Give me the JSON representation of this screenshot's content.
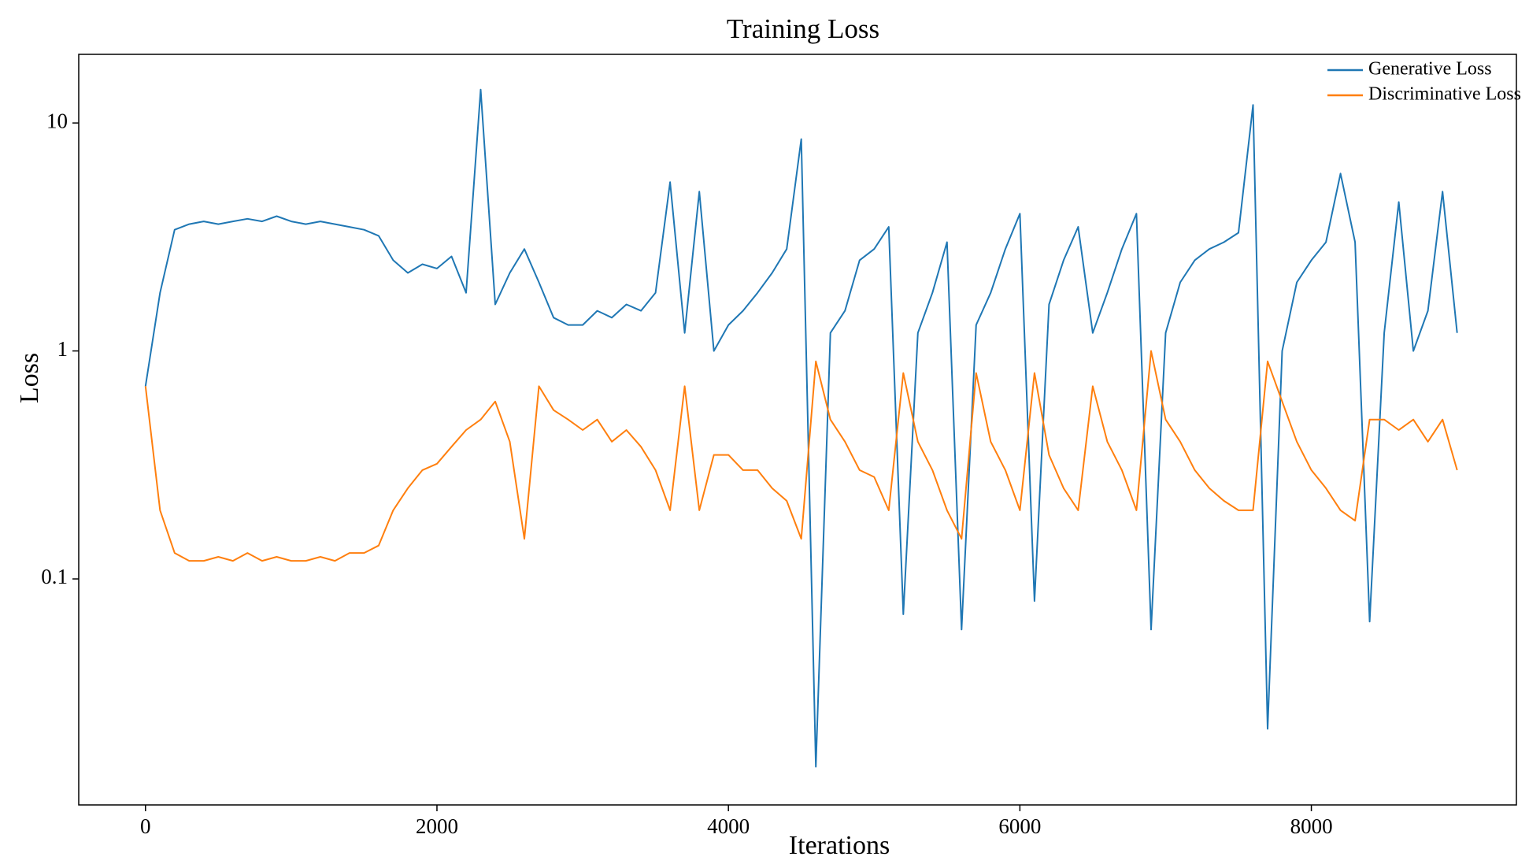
{
  "chart_data": {
    "type": "line",
    "title": "Training Loss",
    "x_label": "Iterations",
    "y_label": "Loss",
    "y_scale": "log",
    "grid": false,
    "legend": "upper right",
    "xlim": [
      -458,
      9407
    ],
    "xticks": [
      0,
      2000,
      4000,
      6000,
      8000
    ],
    "ylim": [
      0.0102,
      20
    ],
    "yticks": [
      0.1,
      1,
      10
    ],
    "x": [
      0,
      100,
      200,
      300,
      400,
      500,
      600,
      700,
      800,
      900,
      1000,
      1100,
      1200,
      1300,
      1400,
      1500,
      1600,
      1700,
      1800,
      1900,
      2000,
      2100,
      2200,
      2300,
      2400,
      2500,
      2600,
      2700,
      2800,
      2900,
      3000,
      3100,
      3200,
      3300,
      3400,
      3500,
      3600,
      3700,
      3800,
      3900,
      4000,
      4100,
      4200,
      4300,
      4400,
      4500,
      4600,
      4700,
      4800,
      4900,
      5000,
      5100,
      5200,
      5300,
      5400,
      5500,
      5600,
      5700,
      5800,
      5900,
      6000,
      6100,
      6200,
      6300,
      6400,
      6500,
      6600,
      6700,
      6800,
      6900,
      7000,
      7100,
      7200,
      7300,
      7400,
      7500,
      7600,
      7700,
      7800,
      7900,
      8000,
      8100,
      8200,
      8300,
      8400,
      8500,
      8600,
      8700,
      8800,
      8900,
      9000
    ],
    "series": [
      {
        "name": "Generative Loss",
        "color": "#1f77b4",
        "values": [
          0.7,
          1.8,
          3.4,
          3.6,
          3.7,
          3.6,
          3.7,
          3.8,
          3.7,
          3.9,
          3.7,
          3.6,
          3.7,
          3.6,
          3.5,
          3.4,
          3.2,
          2.5,
          2.2,
          2.4,
          2.3,
          2.6,
          1.8,
          14,
          1.6,
          2.2,
          2.8,
          2.0,
          1.4,
          1.3,
          1.3,
          1.5,
          1.4,
          1.6,
          1.5,
          1.8,
          5.5,
          1.2,
          5,
          1.0,
          1.3,
          1.5,
          1.8,
          2.2,
          2.8,
          8.5,
          0.015,
          1.2,
          1.5,
          2.5,
          2.8,
          3.5,
          0.07,
          1.2,
          1.8,
          3,
          0.06,
          1.3,
          1.8,
          2.8,
          4,
          0.08,
          1.6,
          2.5,
          3.5,
          1.2,
          1.8,
          2.8,
          4,
          0.06,
          1.2,
          2.0,
          2.5,
          2.8,
          3.0,
          3.3,
          12,
          0.022,
          1.0,
          2.0,
          2.5,
          3.0,
          6,
          3,
          0.065,
          1.2,
          4.5,
          1.0,
          1.5,
          5,
          1.2
        ]
      },
      {
        "name": "Discriminative Loss",
        "color": "#ff7f0e",
        "values": [
          0.7,
          0.2,
          0.13,
          0.12,
          0.12,
          0.125,
          0.12,
          0.13,
          0.12,
          0.125,
          0.12,
          0.12,
          0.125,
          0.12,
          0.13,
          0.13,
          0.14,
          0.2,
          0.25,
          0.3,
          0.32,
          0.38,
          0.45,
          0.5,
          0.6,
          0.4,
          0.15,
          0.7,
          0.55,
          0.5,
          0.45,
          0.5,
          0.4,
          0.45,
          0.38,
          0.3,
          0.2,
          0.7,
          0.2,
          0.35,
          0.35,
          0.3,
          0.3,
          0.25,
          0.22,
          0.15,
          0.9,
          0.5,
          0.4,
          0.3,
          0.28,
          0.2,
          0.8,
          0.4,
          0.3,
          0.2,
          0.15,
          0.8,
          0.4,
          0.3,
          0.2,
          0.8,
          0.35,
          0.25,
          0.2,
          0.7,
          0.4,
          0.3,
          0.2,
          1.0,
          0.5,
          0.4,
          0.3,
          0.25,
          0.22,
          0.2,
          0.2,
          0.9,
          0.6,
          0.4,
          0.3,
          0.25,
          0.2,
          0.18,
          0.5,
          0.5,
          0.45,
          0.5,
          0.4,
          0.5,
          0.3
        ]
      }
    ]
  }
}
